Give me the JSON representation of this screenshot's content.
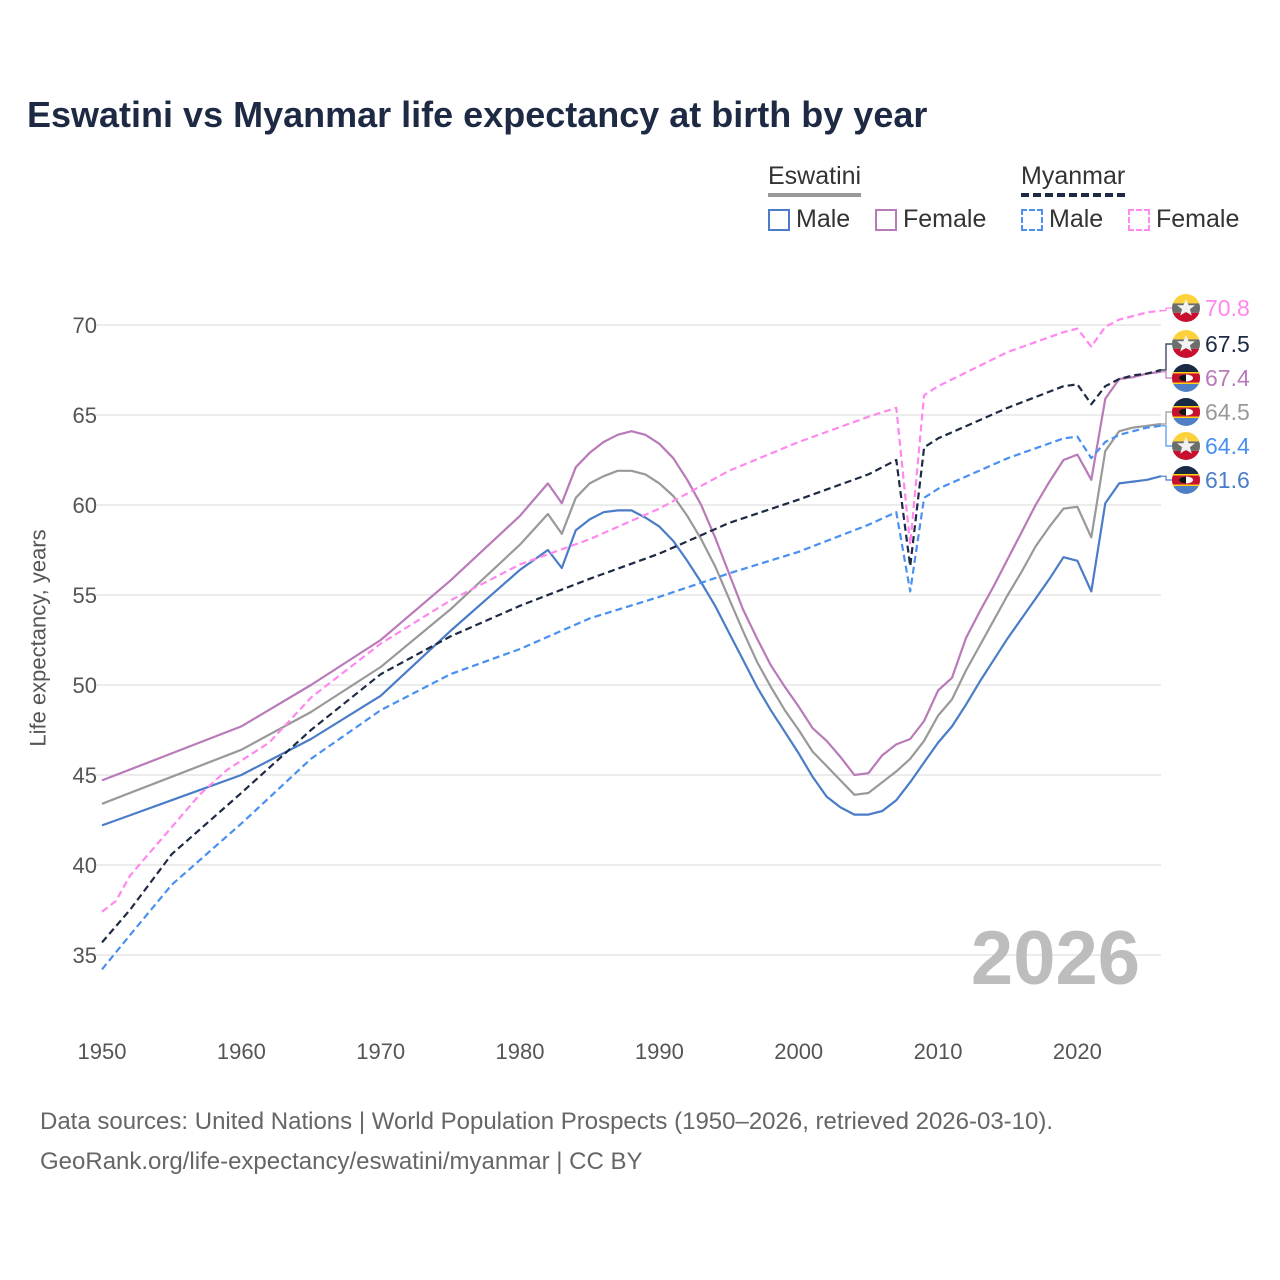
{
  "title": "Eswatini vs Myanmar life expectancy at birth by year",
  "legend": {
    "groups": [
      {
        "name": "Eswatini",
        "items": [
          "Male",
          "Female"
        ]
      },
      {
        "name": "Myanmar",
        "items": [
          "Male",
          "Female"
        ]
      }
    ]
  },
  "current_year": "2026",
  "footer": {
    "line1": "Data sources: United Nations | World Population Prospects (1950–2026, retrieved 2026-03-10).",
    "line2": "GeoRank.org/life-expectancy/eswatini/myanmar | CC BY"
  },
  "chart_data": {
    "type": "line",
    "title": "Eswatini vs Myanmar life expectancy at birth by year",
    "xlabel": "",
    "ylabel": "Life expectancy, years",
    "xlim": [
      1950,
      2026
    ],
    "ylim": [
      33,
      73
    ],
    "xticks": [
      "1950",
      "1960",
      "1970",
      "1980",
      "1990",
      "2000",
      "2010",
      "2020"
    ],
    "yticks": [
      "35",
      "40",
      "45",
      "50",
      "55",
      "60",
      "65",
      "70"
    ],
    "grid": true,
    "series": [
      {
        "name": "Eswatini Female",
        "country": "Eswatini",
        "color": "#b87ab8",
        "dash": false,
        "end_label": "67.4",
        "x": [
          1950,
          1955,
          1960,
          1965,
          1970,
          1975,
          1980,
          1982,
          1983,
          1984,
          1985,
          1986,
          1987,
          1988,
          1989,
          1990,
          1991,
          1992,
          1993,
          1994,
          1995,
          1996,
          1997,
          1998,
          1999,
          2000,
          2001,
          2002,
          2003,
          2004,
          2005,
          2006,
          2007,
          2008,
          2009,
          2010,
          2011,
          2012,
          2013,
          2014,
          2015,
          2016,
          2017,
          2018,
          2019,
          2020,
          2021,
          2022,
          2023,
          2024,
          2025,
          2026
        ],
        "y": [
          44.7,
          46.2,
          47.7,
          50.0,
          52.5,
          55.8,
          59.4,
          61.2,
          60.1,
          62.1,
          62.9,
          63.5,
          63.9,
          64.1,
          63.9,
          63.4,
          62.6,
          61.4,
          60.0,
          58.2,
          56.2,
          54.2,
          52.6,
          51.1,
          49.9,
          48.8,
          47.6,
          46.9,
          46.0,
          45.0,
          45.1,
          46.1,
          46.7,
          47.0,
          48.0,
          49.7,
          50.4,
          52.6,
          54.1,
          55.5,
          57.0,
          58.5,
          60.0,
          61.3,
          62.5,
          62.8,
          61.4,
          65.9,
          67.0,
          67.1,
          67.3,
          67.4
        ]
      },
      {
        "name": "Eswatini",
        "country": "Eswatini",
        "color": "#999999",
        "dash": false,
        "end_label": "64.5",
        "x": [
          1950,
          1955,
          1960,
          1965,
          1970,
          1975,
          1980,
          1982,
          1983,
          1984,
          1985,
          1986,
          1987,
          1988,
          1989,
          1990,
          1991,
          1992,
          1993,
          1994,
          1995,
          1996,
          1997,
          1998,
          1999,
          2000,
          2001,
          2002,
          2003,
          2004,
          2005,
          2006,
          2007,
          2008,
          2009,
          2010,
          2011,
          2012,
          2013,
          2014,
          2015,
          2016,
          2017,
          2018,
          2019,
          2020,
          2021,
          2022,
          2023,
          2024,
          2025,
          2026
        ],
        "y": [
          43.4,
          44.9,
          46.4,
          48.5,
          51.0,
          54.2,
          57.8,
          59.5,
          58.4,
          60.4,
          61.2,
          61.6,
          61.9,
          61.9,
          61.7,
          61.2,
          60.5,
          59.4,
          58.1,
          56.6,
          54.8,
          53.0,
          51.3,
          49.9,
          48.6,
          47.5,
          46.3,
          45.5,
          44.7,
          43.9,
          44.0,
          44.6,
          45.2,
          45.9,
          46.9,
          48.3,
          49.2,
          50.8,
          52.2,
          53.6,
          55.0,
          56.3,
          57.7,
          58.8,
          59.8,
          59.9,
          58.2,
          63.0,
          64.1,
          64.3,
          64.4,
          64.5
        ]
      },
      {
        "name": "Eswatini Male",
        "country": "Eswatini",
        "color": "#4a7cc7",
        "dash": false,
        "end_label": "61.6",
        "x": [
          1950,
          1955,
          1960,
          1965,
          1970,
          1975,
          1980,
          1982,
          1983,
          1984,
          1985,
          1986,
          1987,
          1988,
          1989,
          1990,
          1991,
          1992,
          1993,
          1994,
          1995,
          1996,
          1997,
          1998,
          1999,
          2000,
          2001,
          2002,
          2003,
          2004,
          2005,
          2006,
          2007,
          2008,
          2009,
          2010,
          2011,
          2012,
          2013,
          2014,
          2015,
          2016,
          2017,
          2018,
          2019,
          2020,
          2021,
          2022,
          2023,
          2024,
          2025,
          2026
        ],
        "y": [
          42.2,
          43.6,
          45.0,
          47.0,
          49.4,
          53.0,
          56.4,
          57.5,
          56.5,
          58.6,
          59.2,
          59.6,
          59.7,
          59.7,
          59.3,
          58.8,
          58.0,
          56.9,
          55.7,
          54.4,
          52.9,
          51.4,
          49.9,
          48.6,
          47.4,
          46.2,
          44.9,
          43.8,
          43.2,
          42.8,
          42.8,
          43.0,
          43.6,
          44.6,
          45.7,
          46.8,
          47.7,
          48.9,
          50.2,
          51.4,
          52.6,
          53.7,
          54.8,
          55.9,
          57.1,
          56.9,
          55.2,
          60.1,
          61.2,
          61.3,
          61.4,
          61.6
        ]
      },
      {
        "name": "Myanmar Female",
        "country": "Myanmar",
        "color": "#ff88ee",
        "dash": true,
        "end_label": "70.8",
        "x": [
          1950,
          1951,
          1952,
          1953,
          1954,
          1955,
          1956,
          1957,
          1958,
          1959,
          1960,
          1962,
          1965,
          1970,
          1975,
          1980,
          1985,
          1990,
          1995,
          2000,
          2005,
          2007,
          2008,
          2009,
          2010,
          2015,
          2019,
          2020,
          2021,
          2022,
          2023,
          2024,
          2025,
          2026
        ],
        "y": [
          37.4,
          38.0,
          39.4,
          40.3,
          41.2,
          42.1,
          43.0,
          43.9,
          44.6,
          45.3,
          45.8,
          46.8,
          49.3,
          52.3,
          54.7,
          56.7,
          58.1,
          59.8,
          61.9,
          63.5,
          64.9,
          65.4,
          57.8,
          66.1,
          66.6,
          68.5,
          69.6,
          69.8,
          68.8,
          69.9,
          70.3,
          70.5,
          70.7,
          70.8
        ]
      },
      {
        "name": "Myanmar",
        "country": "Myanmar",
        "color": "#1e2a44",
        "dash": true,
        "end_label": "67.5",
        "x": [
          1950,
          1952,
          1955,
          1960,
          1965,
          1970,
          1975,
          1980,
          1985,
          1990,
          1995,
          2000,
          2005,
          2007,
          2008,
          2009,
          2010,
          2015,
          2019,
          2020,
          2021,
          2022,
          2023,
          2024,
          2025,
          2026
        ],
        "y": [
          35.7,
          37.5,
          40.6,
          44.0,
          47.5,
          50.6,
          52.7,
          54.4,
          55.9,
          57.3,
          59.0,
          60.3,
          61.7,
          62.5,
          56.6,
          63.2,
          63.7,
          65.4,
          66.6,
          66.7,
          65.6,
          66.6,
          67.0,
          67.2,
          67.3,
          67.5
        ]
      },
      {
        "name": "Myanmar Male",
        "country": "Myanmar",
        "color": "#4a90f0",
        "dash": true,
        "end_label": "64.4",
        "x": [
          1950,
          1952,
          1955,
          1960,
          1965,
          1970,
          1975,
          1980,
          1985,
          1990,
          1995,
          2000,
          2005,
          2007,
          2008,
          2009,
          2010,
          2015,
          2019,
          2020,
          2021,
          2022,
          2023,
          2024,
          2025,
          2026
        ],
        "y": [
          34.2,
          36.1,
          38.9,
          42.3,
          45.9,
          48.6,
          50.6,
          52.0,
          53.7,
          54.9,
          56.2,
          57.4,
          58.9,
          59.6,
          55.2,
          60.4,
          60.9,
          62.6,
          63.7,
          63.8,
          62.6,
          63.5,
          63.9,
          64.1,
          64.3,
          64.4
        ]
      }
    ]
  },
  "colors": {
    "eswatini_male": "#4a7cc7",
    "eswatini_female": "#b87ab8",
    "myanmar_male": "#4a90f0",
    "myanmar_female": "#ff88ee",
    "total_eswatini": "#999999",
    "total_myanmar": "#1e2a44"
  }
}
